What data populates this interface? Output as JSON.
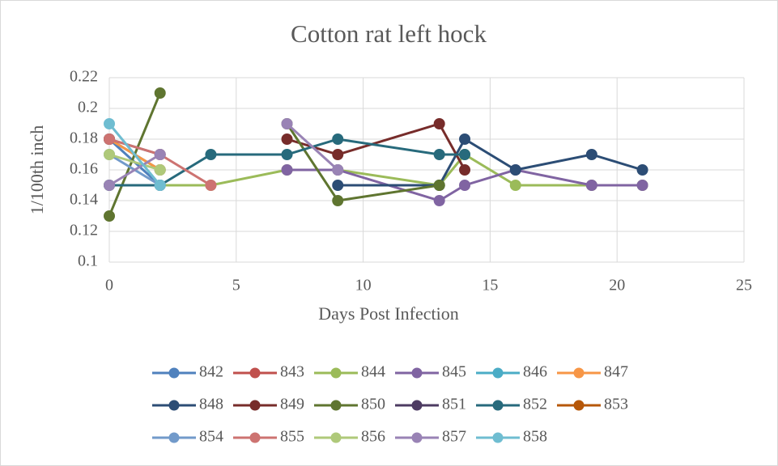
{
  "chart_data": {
    "type": "line",
    "title": "Cotton rat left hock",
    "x_label": "Days Post Infection",
    "y_label": "1/100th inch",
    "xlim": [
      0,
      25
    ],
    "xticks": [
      0,
      5,
      10,
      15,
      20,
      25
    ],
    "ylim": [
      0.1,
      0.22
    ],
    "yticks": [
      0.1,
      0.12,
      0.14,
      0.16,
      0.18,
      0.2,
      0.22
    ],
    "grid": true,
    "legend": "bottom",
    "series": [
      {
        "name": "842",
        "color": "#4f81bd",
        "x": [
          0,
          2
        ],
        "values": [
          0.18,
          0.15
        ]
      },
      {
        "name": "843",
        "color": "#c0504d",
        "x": [
          0,
          2
        ],
        "values": [
          0.18,
          0.16
        ]
      },
      {
        "name": "844",
        "color": "#9bbb59",
        "x": [
          0,
          2,
          4,
          7,
          9,
          13,
          14,
          16,
          19,
          21
        ],
        "values": [
          0.15,
          0.15,
          0.15,
          0.16,
          0.16,
          0.15,
          0.17,
          0.15,
          0.15,
          0.15
        ]
      },
      {
        "name": "845",
        "color": "#8064a2",
        "x": [
          7,
          9,
          13,
          14,
          16,
          19,
          21
        ],
        "values": [
          0.16,
          0.16,
          0.14,
          0.15,
          0.16,
          0.15,
          0.15
        ]
      },
      {
        "name": "846",
        "color": "#4bacc6",
        "x": [
          0,
          2
        ],
        "values": [
          0.18,
          0.16
        ]
      },
      {
        "name": "847",
        "color": "#f79646",
        "x": [
          0,
          2
        ],
        "values": [
          0.18,
          0.16
        ]
      },
      {
        "name": "848",
        "color": "#2c4d75",
        "x": [
          9,
          13,
          14,
          16,
          19,
          21
        ],
        "values": [
          0.15,
          0.15,
          0.18,
          0.16,
          0.17,
          0.16
        ]
      },
      {
        "name": "849",
        "color": "#772c2a",
        "x": [
          7,
          9,
          13,
          14
        ],
        "values": [
          0.18,
          0.17,
          0.19,
          0.16
        ]
      },
      {
        "name": "850",
        "color": "#5f7530",
        "x": [
          0,
          2,
          4,
          7,
          9,
          13
        ],
        "values": [
          0.13,
          0.21,
          null,
          0.19,
          0.14,
          0.15
        ]
      },
      {
        "name": "851",
        "color": "#4d3b62",
        "x": [
          0,
          2
        ],
        "values": [
          0.18,
          0.17
        ]
      },
      {
        "name": "852",
        "color": "#276a7c",
        "x": [
          0,
          2,
          4,
          7,
          9,
          13,
          14
        ],
        "values": [
          0.15,
          0.15,
          0.17,
          0.17,
          0.18,
          0.17,
          0.17
        ]
      },
      {
        "name": "853",
        "color": "#b65708",
        "x": [],
        "values": []
      },
      {
        "name": "854",
        "color": "#729aca",
        "x": [
          0,
          2
        ],
        "values": [
          0.17,
          0.15
        ]
      },
      {
        "name": "855",
        "color": "#cd7371",
        "x": [
          0,
          2,
          4
        ],
        "values": [
          0.18,
          0.17,
          0.15
        ]
      },
      {
        "name": "856",
        "color": "#afc97a",
        "x": [
          0,
          2
        ],
        "values": [
          0.17,
          0.16
        ]
      },
      {
        "name": "857",
        "color": "#9983b5",
        "x": [
          0,
          2,
          4,
          7,
          9
        ],
        "values": [
          0.15,
          0.17,
          null,
          0.19,
          0.16
        ]
      },
      {
        "name": "858",
        "color": "#6fbdd1",
        "x": [
          0,
          2
        ],
        "values": [
          0.19,
          0.15
        ]
      }
    ]
  }
}
